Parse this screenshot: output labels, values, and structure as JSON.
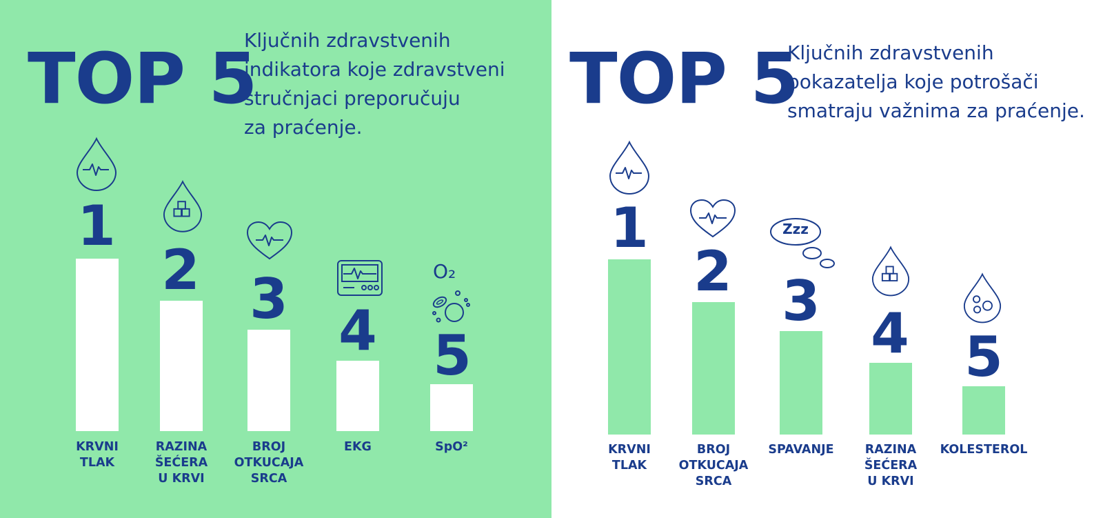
{
  "left": {
    "heading": "TOP 5",
    "subtitle_lines": [
      "Ključnih zdravstvenih",
      "indikatora koje zdravstveni",
      "stručnjaci preporučuju",
      "za praćenje."
    ],
    "items": [
      {
        "rank": "1",
        "label": "KRVNI\nTLAK",
        "icon": "blood-drop-pulse-icon"
      },
      {
        "rank": "2",
        "label": "RAZINA\nŠEĆERA\nU KRVI",
        "icon": "blood-drop-sugar-cubes-icon"
      },
      {
        "rank": "3",
        "label": "BROJ\nOTKUCAJA\nSRCA",
        "icon": "heart-pulse-icon"
      },
      {
        "rank": "4",
        "label": "EKG",
        "icon": "ekg-monitor-icon"
      },
      {
        "rank": "5",
        "label": "SpO²",
        "icon": "oxygen-bubbles-icon",
        "icon_text": "O₂"
      }
    ],
    "colors": {
      "background": "#90e8aa",
      "bars": "#ffffff",
      "text": "#1a3c8c"
    }
  },
  "right": {
    "heading": "TOP 5",
    "subtitle_lines": [
      "Ključnih zdravstvenih",
      "pokazatelja koje potrošači",
      "smatraju važnima za praćenje."
    ],
    "items": [
      {
        "rank": "1",
        "label": "KRVNI\nTLAK",
        "icon": "blood-drop-pulse-icon"
      },
      {
        "rank": "2",
        "label": "BROJ\nOTKUCAJA\nSRCA",
        "icon": "heart-pulse-icon"
      },
      {
        "rank": "3",
        "label": "SPAVANJE",
        "icon": "sleep-bubble-icon",
        "icon_text": "Zzz"
      },
      {
        "rank": "4",
        "label": "RAZINA\nŠEĆERA\nU KRVI",
        "icon": "blood-drop-sugar-cubes-icon"
      },
      {
        "rank": "5",
        "label": "KOLESTEROL",
        "icon": "blood-drop-cholesterol-icon"
      }
    ],
    "colors": {
      "background": "#ffffff",
      "bars": "#90e8aa",
      "text": "#1a3c8c"
    }
  }
}
